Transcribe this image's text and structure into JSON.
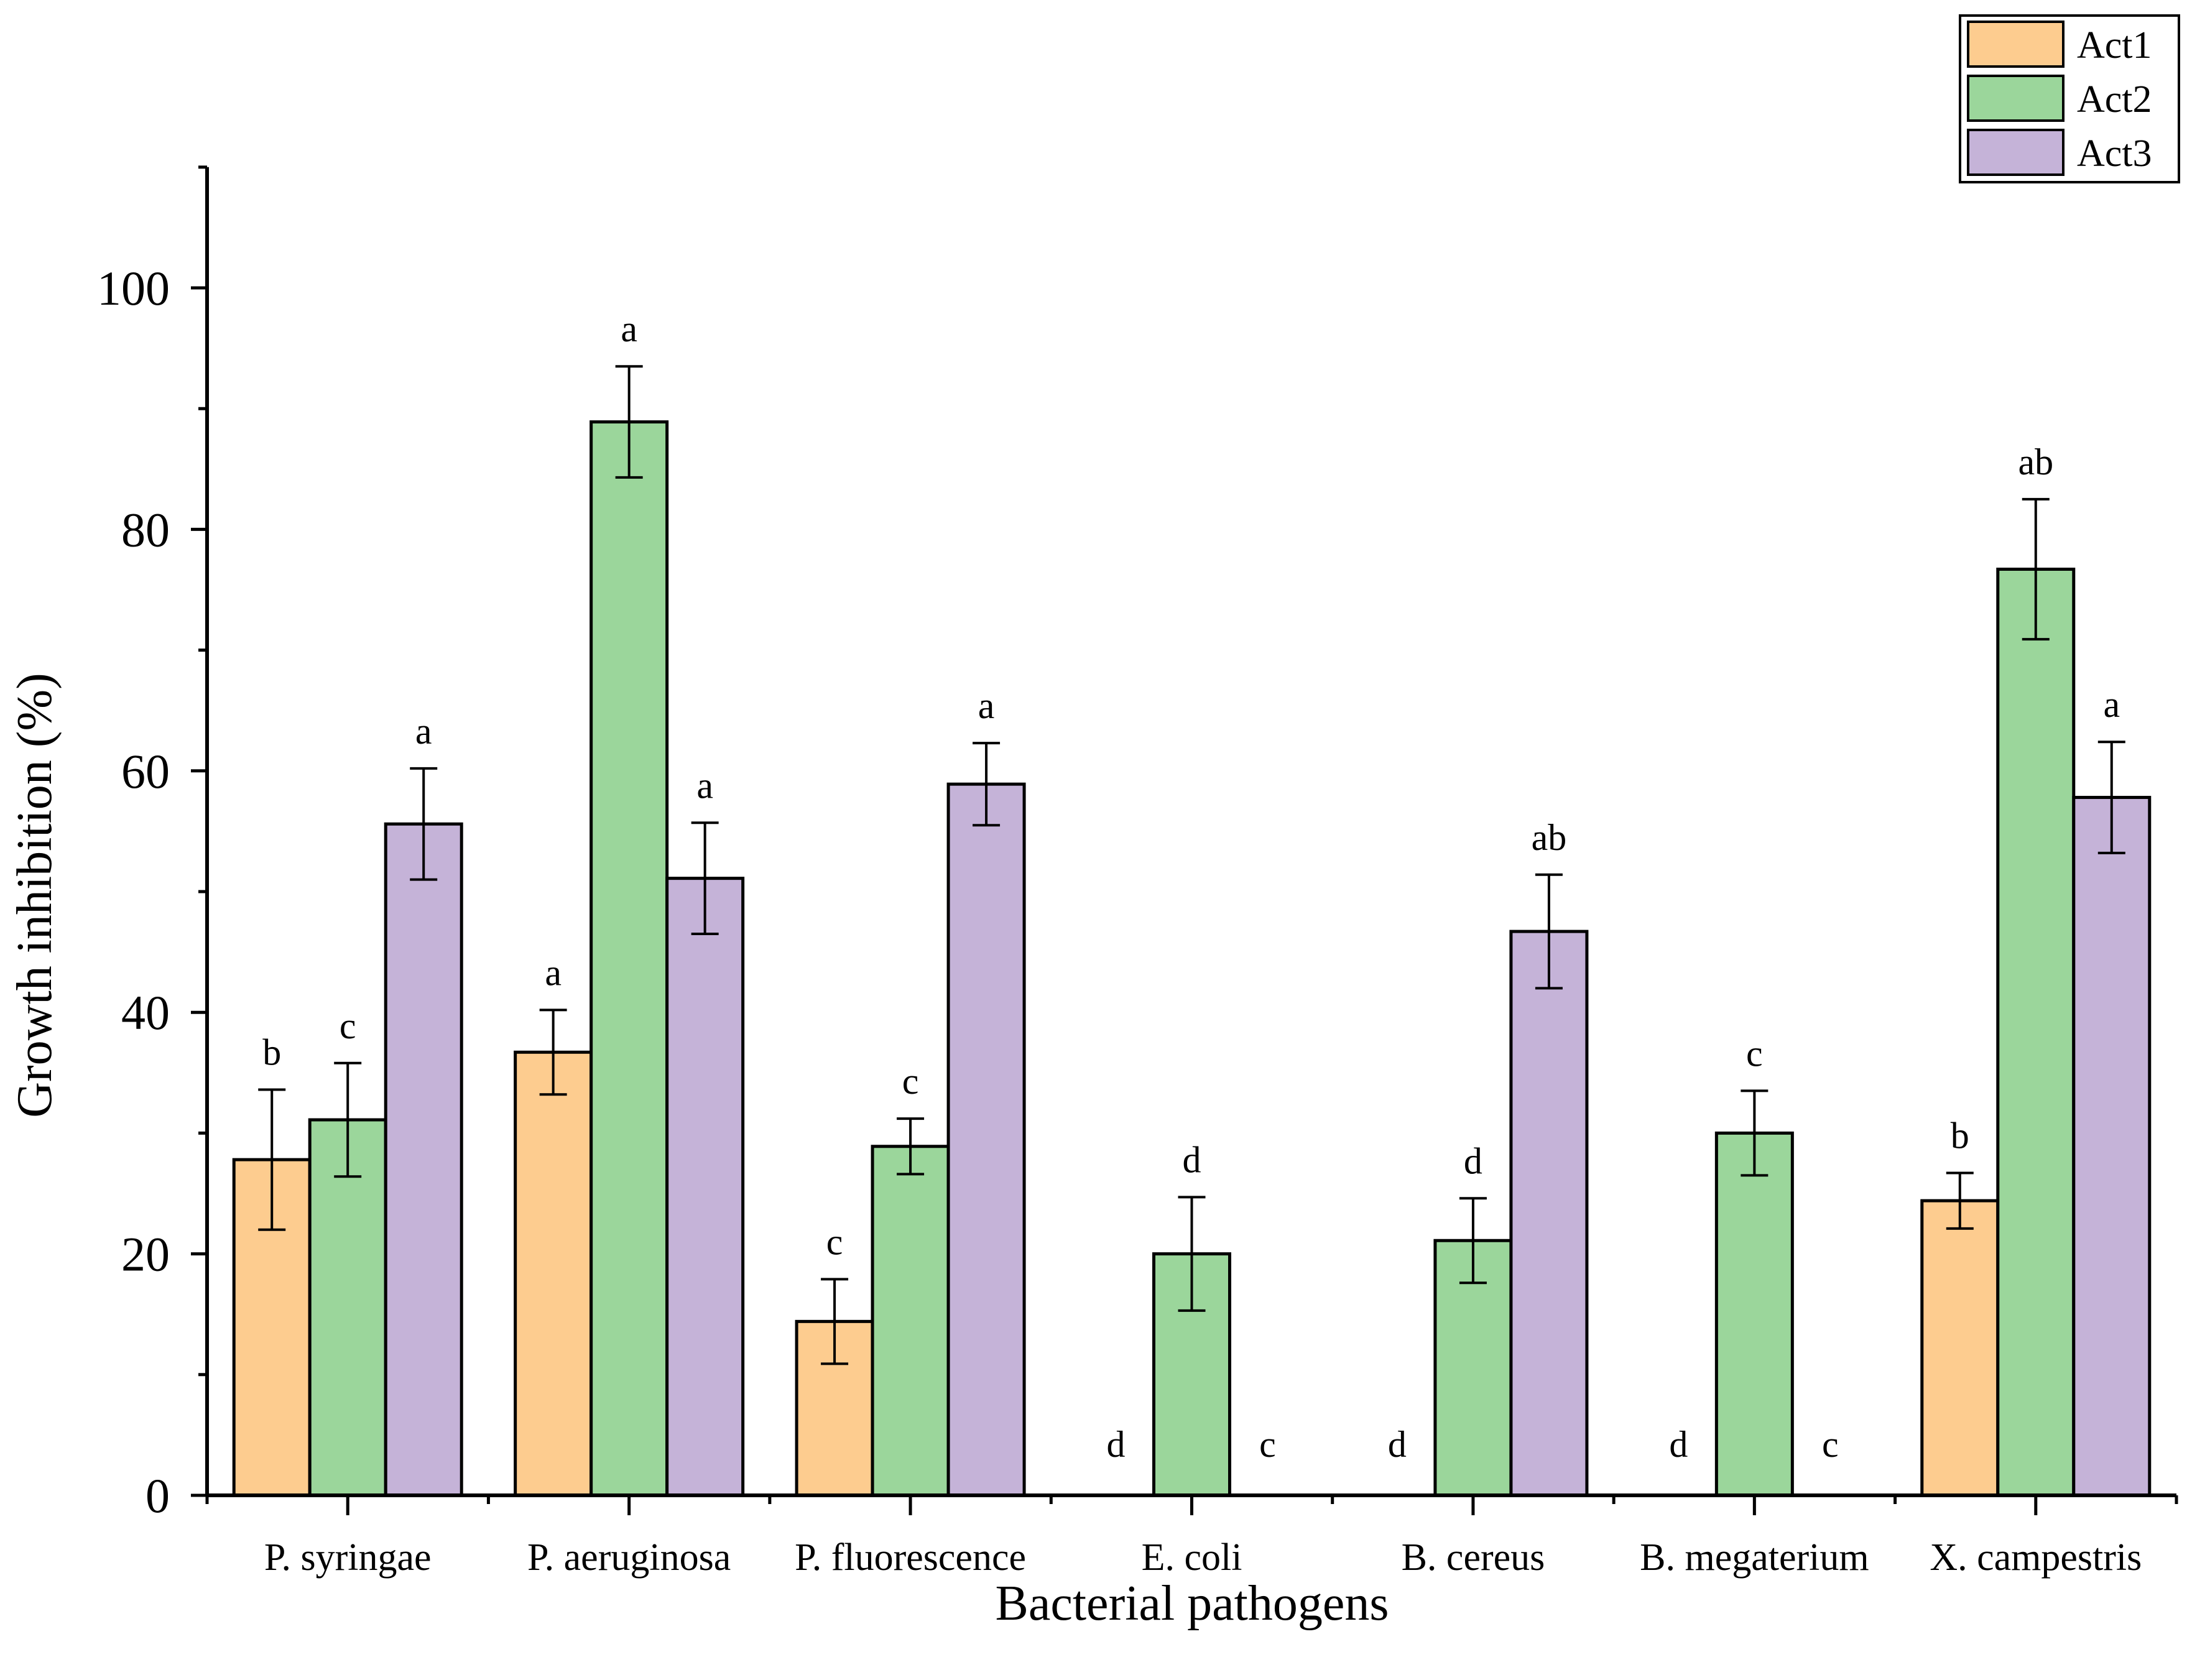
{
  "chart_data": {
    "type": "bar",
    "title": "",
    "xlabel": "Bacterial pathogens",
    "ylabel": "Growth inhibition (%)",
    "ylim": [
      0,
      110
    ],
    "yticks": [
      0,
      20,
      40,
      60,
      80,
      100
    ],
    "yticklabels": [
      "0",
      "20",
      "40",
      "60",
      "80",
      "100"
    ],
    "legend_position": "top-right",
    "categories": [
      "P. syringae",
      "P. aeruginosa",
      "P. fluorescence",
      "E. coli",
      "B. cereus",
      "B. megaterium",
      "X. campestris"
    ],
    "series": [
      {
        "name": "Act1",
        "color": "#FDCC8F",
        "values": [
          27.8,
          36.7,
          14.4,
          0,
          0,
          0,
          24.4
        ],
        "errors": [
          5.8,
          3.5,
          3.5,
          0,
          0,
          0,
          2.3
        ],
        "letters": [
          "b",
          "a",
          "c",
          "d",
          "d",
          "d",
          "b"
        ]
      },
      {
        "name": "Act2",
        "color": "#9BD69B",
        "values": [
          31.1,
          88.9,
          28.9,
          20.0,
          21.1,
          30.0,
          76.7
        ],
        "errors": [
          4.7,
          4.6,
          2.3,
          4.7,
          3.5,
          3.5,
          5.8
        ],
        "letters": [
          "c",
          "a",
          "c",
          "d",
          "d",
          "c",
          "ab"
        ]
      },
      {
        "name": "Act3",
        "color": "#C5B3D8",
        "values": [
          55.6,
          51.1,
          58.9,
          0,
          46.7,
          0,
          57.8
        ],
        "errors": [
          4.6,
          4.6,
          3.4,
          0,
          4.7,
          0,
          4.6
        ],
        "letters": [
          "a",
          "a",
          "a",
          "c",
          "ab",
          "c",
          "a"
        ]
      }
    ]
  }
}
